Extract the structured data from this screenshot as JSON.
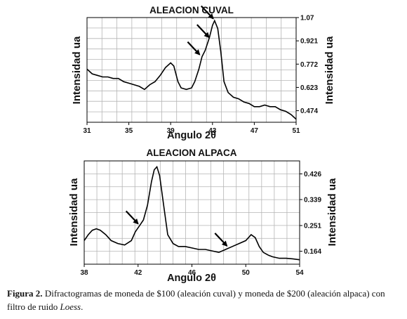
{
  "chart_data": [
    {
      "type": "line",
      "title": "ALEACION CUVAL",
      "xlabel": "Angulo 2θ",
      "ylabel_left": "Intensidad ua",
      "ylabel_right": "Intensidad ua",
      "xlim": [
        31,
        51
      ],
      "ylim": [
        0.4,
        1.07
      ],
      "x_ticks": [
        31,
        35,
        39,
        43,
        47,
        51
      ],
      "y_ticks": [
        "1.07",
        "0.921",
        "0.772",
        "0.623",
        "0.474"
      ],
      "y_tick_values": [
        1.07,
        0.921,
        0.772,
        0.623,
        0.474
      ],
      "grid": true,
      "series": [
        {
          "x": [
            31,
            31.5,
            32,
            32.5,
            33,
            33.5,
            34,
            34.5,
            35,
            35.5,
            36,
            36.5,
            37,
            37.5,
            38,
            38.5,
            39,
            39.3,
            39.7,
            40,
            40.5,
            41,
            41.3,
            41.7,
            42,
            42.3,
            42.7,
            43,
            43.2,
            43.5,
            43.8,
            44.1,
            44.5,
            45,
            45.5,
            46,
            46.5,
            47,
            47.5,
            48,
            48.5,
            49,
            49.5,
            50,
            50.5,
            51
          ],
          "y": [
            0.74,
            0.71,
            0.7,
            0.69,
            0.69,
            0.68,
            0.68,
            0.66,
            0.65,
            0.64,
            0.63,
            0.61,
            0.64,
            0.66,
            0.7,
            0.75,
            0.78,
            0.76,
            0.66,
            0.62,
            0.61,
            0.62,
            0.66,
            0.74,
            0.82,
            0.86,
            0.94,
            1.02,
            1.05,
            1.0,
            0.85,
            0.66,
            0.59,
            0.56,
            0.55,
            0.53,
            0.52,
            0.5,
            0.5,
            0.51,
            0.5,
            0.5,
            0.48,
            0.47,
            0.45,
            0.42
          ]
        }
      ],
      "arrows": [
        {
          "x": 41.9,
          "y": 0.82
        },
        {
          "x": 42.8,
          "y": 0.93
        },
        {
          "x": 43.2,
          "y": 1.05
        }
      ]
    },
    {
      "type": "line",
      "title": "ALEACION ALPACA",
      "xlabel": "Angulo 2θ",
      "ylabel_left": "Intensidad ua",
      "ylabel_right": "Intensidad ua",
      "xlim": [
        38,
        54
      ],
      "ylim": [
        0.12,
        0.47
      ],
      "x_ticks": [
        38,
        42,
        46,
        50,
        54
      ],
      "y_ticks": [
        "0.426",
        "0.339",
        "0.251",
        "0.164"
      ],
      "y_tick_values": [
        0.426,
        0.339,
        0.251,
        0.164
      ],
      "grid": true,
      "series": [
        {
          "x": [
            38,
            38.3,
            38.6,
            38.9,
            39.2,
            39.6,
            40,
            40.5,
            41,
            41.5,
            41.8,
            42.1,
            42.4,
            42.7,
            43,
            43.2,
            43.4,
            43.6,
            43.9,
            44.2,
            44.6,
            45,
            45.5,
            46,
            46.5,
            47,
            47.5,
            48,
            48.5,
            49,
            49.5,
            50,
            50.4,
            50.7,
            51,
            51.3,
            51.7,
            52,
            52.5,
            53,
            53.5,
            54
          ],
          "y": [
            0.2,
            0.22,
            0.235,
            0.24,
            0.235,
            0.22,
            0.2,
            0.19,
            0.185,
            0.2,
            0.23,
            0.25,
            0.27,
            0.32,
            0.4,
            0.44,
            0.45,
            0.42,
            0.32,
            0.22,
            0.19,
            0.18,
            0.18,
            0.175,
            0.17,
            0.17,
            0.165,
            0.16,
            0.17,
            0.18,
            0.19,
            0.2,
            0.22,
            0.21,
            0.18,
            0.16,
            0.15,
            0.145,
            0.14,
            0.14,
            0.138,
            0.135
          ]
        }
      ],
      "arrows": [
        {
          "x": 42.1,
          "y": 0.25
        },
        {
          "x": 48.7,
          "y": 0.175
        }
      ]
    }
  ],
  "caption": {
    "label": "Figura 2.",
    "text_1": " Difractogramas de moneda de $100 (aleación cuval) y moneda de $200 (aleación alpaca) con filtro de ruido ",
    "method": "Loess",
    "text_2": "."
  }
}
